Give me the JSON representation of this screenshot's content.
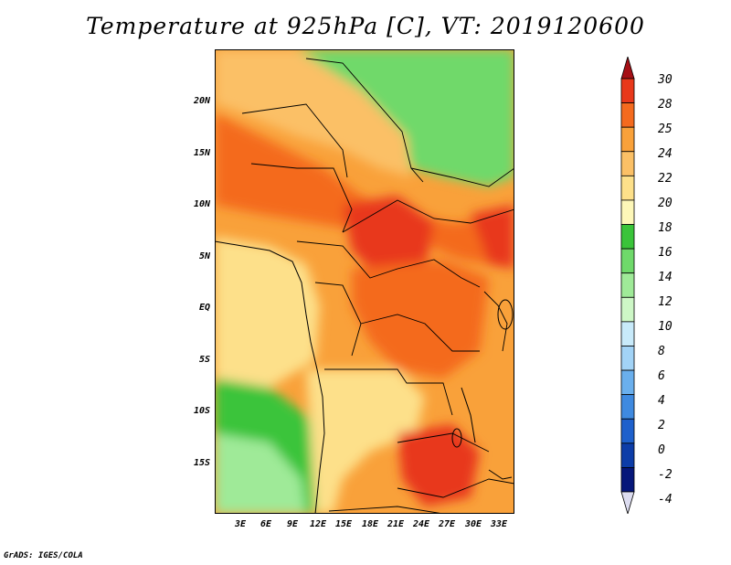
{
  "title": "Temperature at 925hPa [C], VT: 2019120600",
  "credit": "GrADS: IGES/COLA",
  "lat_labels": [
    "20N",
    "15N",
    "10N",
    "5N",
    "EQ",
    "5S",
    "10S",
    "15S"
  ],
  "lon_labels": [
    "3E",
    "6E",
    "9E",
    "12E",
    "15E",
    "18E",
    "21E",
    "24E",
    "27E",
    "30E",
    "33E"
  ],
  "colorbar": {
    "labels": [
      "30",
      "28",
      "25",
      "24",
      "22",
      "20",
      "18",
      "16",
      "14",
      "12",
      "10",
      "8",
      "6",
      "4",
      "2",
      "0",
      "-2",
      "-4"
    ],
    "colors": [
      "#a50f15",
      "#e8381b",
      "#f46a1e",
      "#f9a13a",
      "#fbc066",
      "#fde08a",
      "#fdf7b8",
      "#3ac43a",
      "#6fd96a",
      "#9fea98",
      "#cdf7c6",
      "#c8eafa",
      "#a2d3f6",
      "#6aafed",
      "#3f8ae0",
      "#1e60cc",
      "#0d3da8",
      "#06177a",
      "#000a55"
    ]
  },
  "colors": {
    "hot": "#f46a1e",
    "warm": "#f9a13a",
    "mild": "#fde08a",
    "cool": "#3ac43a",
    "pale_green": "#9fea98",
    "line": "#000000"
  }
}
